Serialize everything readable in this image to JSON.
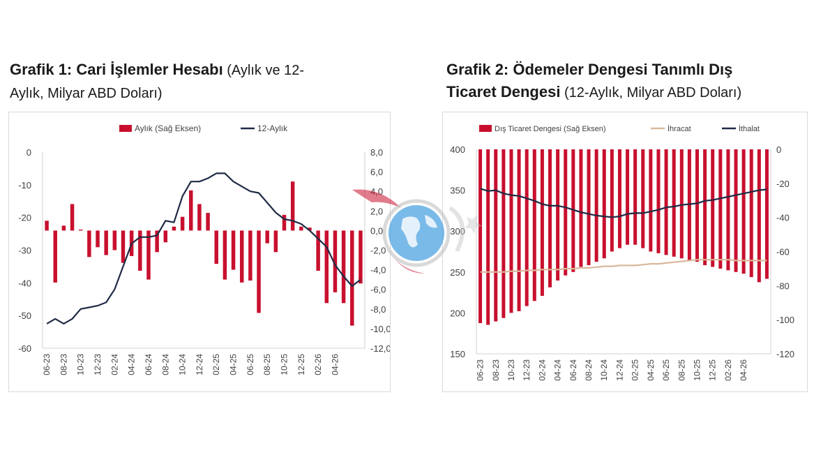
{
  "chart_data": [
    {
      "type": "bar+line",
      "title_bold": "Grafik 1: Cari İşlemler Hesabı",
      "title_rest": " (Aylık ve 12-",
      "title_line2": "Aylık, Milyar ABD Doları)",
      "legend": [
        "Aylık (Sağ Eksen)",
        "12-Aylık"
      ],
      "colors": {
        "bar": "#c8102e",
        "line": "#1f2a44"
      },
      "left_axis": {
        "min": -60,
        "max": 0,
        "ticks": [
          "0",
          "-10",
          "-20",
          "-30",
          "-40",
          "-50",
          "-60"
        ]
      },
      "right_axis": {
        "min": -12,
        "max": 8,
        "ticks": [
          "8,0",
          "6,0",
          "4,0",
          "2,0",
          "0,0",
          "-2,0",
          "-4,0",
          "-6,0",
          "-8,0",
          "-10,0",
          "-12,0"
        ]
      },
      "x_labels": [
        "06-23",
        "08-23",
        "10-23",
        "12-23",
        "02-24",
        "04-24",
        "06-24",
        "08-24",
        "10-24",
        "12-24",
        "02-25",
        "04-25",
        "06-25",
        "08-25",
        "10-25",
        "12-25",
        "02-26",
        "04-26"
      ],
      "series": [
        {
          "name": "Aylık (Sağ Eksen)",
          "axis": "right",
          "values": [
            1.0,
            -5.3,
            0.5,
            2.7,
            0.1,
            -2.7,
            -1.7,
            -2.5,
            -2.0,
            -3.3,
            -2.6,
            -4.1,
            -5.0,
            -2.2,
            -1.2,
            0.4,
            1.4,
            4.1,
            2.7,
            1.8,
            -3.4,
            -5.0,
            -4.0,
            -5.3,
            -5.1,
            -8.4,
            -1.3,
            -2.2,
            1.6,
            5.0,
            0.4,
            0.3,
            -4.1,
            -7.4,
            -6.3,
            -7.4,
            -9.7,
            -5.4
          ]
        },
        {
          "name": "12-Aylık",
          "axis": "left",
          "values": [
            -52.5,
            -51.0,
            -52.5,
            -51.0,
            -48.0,
            -47.5,
            -47.0,
            -46.0,
            -42.0,
            -35.0,
            -28.0,
            -26.0,
            -26.0,
            -25.5,
            -21.0,
            -21.5,
            -13.5,
            -9.0,
            -9.0,
            -8.0,
            -6.5,
            -6.5,
            -9.0,
            -10.5,
            -12.0,
            -12.5,
            -15.5,
            -18.5,
            -20.5,
            -21.0,
            -22.0,
            -24.0,
            -26.5,
            -29.0,
            -34.5,
            -38.0,
            -41.0,
            -39.0
          ]
        }
      ]
    },
    {
      "type": "bar+line",
      "title_bold": "Grafik 2: Ödemeler Dengesi Tanımlı Dış",
      "title_bold2": "Ticaret Dengesi",
      "title_rest": " (12-Aylık, Milyar ABD Doları)",
      "legend": [
        "Dış Ticaret Dengesi (Sağ Eksen)",
        "İhracat",
        "İthalat"
      ],
      "colors": {
        "bar": "#c8102e",
        "export": "#d9b99b",
        "import": "#1f2a44"
      },
      "left_axis": {
        "min": 150,
        "max": 400,
        "ticks": [
          "400",
          "350",
          "300",
          "250",
          "200",
          "150"
        ]
      },
      "right_axis": {
        "min": -120,
        "max": 0,
        "ticks": [
          "0",
          "-20",
          "-40",
          "-60",
          "-80",
          "-100",
          "-120"
        ]
      },
      "x_labels": [
        "06-23",
        "08-23",
        "10-23",
        "12-23",
        "02-24",
        "04-24",
        "06-24",
        "08-24",
        "10-24",
        "12-24",
        "02-25",
        "04-25",
        "06-25",
        "08-25",
        "10-25",
        "12-25",
        "02-26",
        "04-26"
      ],
      "series": [
        {
          "name": "Dış Ticaret Dengesi (Sağ Eksen)",
          "axis": "right",
          "values": [
            -102,
            -103,
            -101,
            -99,
            -96,
            -95,
            -92,
            -89,
            -86,
            -81,
            -77,
            -74,
            -72,
            -69,
            -68,
            -66,
            -64,
            -60,
            -58,
            -56,
            -56,
            -58,
            -60,
            -61,
            -62,
            -63,
            -64,
            -65,
            -66,
            -68,
            -69,
            -70,
            -71,
            -72,
            -73,
            -75,
            -78,
            -76
          ]
        },
        {
          "name": "İhracat",
          "axis": "left",
          "values": [
            250,
            250,
            250,
            250,
            251,
            251,
            252,
            252,
            253,
            253,
            253,
            254,
            254,
            255,
            255,
            256,
            257,
            257,
            258,
            258,
            258,
            259,
            260,
            260,
            261,
            262,
            263,
            264,
            265,
            265,
            265,
            265,
            265,
            264,
            264,
            264,
            264,
            264
          ]
        },
        {
          "name": "İthalat",
          "axis": "left",
          "values": [
            352,
            349,
            350,
            346,
            344,
            343,
            340,
            337,
            333,
            331,
            331,
            329,
            326,
            323,
            321,
            319,
            318,
            317,
            318,
            321,
            322,
            322,
            324,
            326,
            329,
            330,
            332,
            333,
            334,
            337,
            338,
            340,
            342,
            344,
            346,
            348,
            350,
            351
          ]
        }
      ]
    }
  ]
}
